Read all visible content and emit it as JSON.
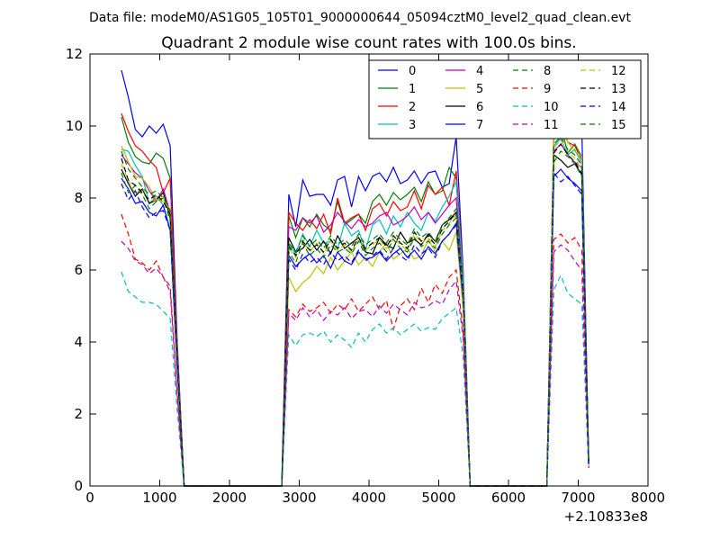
{
  "chart_data": {
    "type": "line",
    "suptitle": "Data file: modeM0/AS1G05_105T01_9000000644_05094cztM0_level2_quad_clean.evt",
    "title": "Quadrant 2 module wise count rates with 100.0s bins.",
    "xlabel": "",
    "ylabel": "",
    "x_offset_label": "+2.10833e8",
    "xlim": [
      0,
      8000
    ],
    "ylim": [
      0,
      12
    ],
    "xticks": [
      0,
      1000,
      2000,
      3000,
      4000,
      5000,
      6000,
      7000,
      8000
    ],
    "yticks": [
      0,
      2,
      4,
      6,
      8,
      10,
      12
    ],
    "grid": false,
    "legend_position": "top-right",
    "x": [
      450,
      550,
      650,
      750,
      850,
      950,
      1050,
      1150,
      1250,
      1350,
      2750,
      2850,
      2950,
      3050,
      3150,
      3250,
      3350,
      3450,
      3550,
      3650,
      3750,
      3850,
      3950,
      4050,
      4150,
      4250,
      4350,
      4450,
      4550,
      4650,
      4750,
      4850,
      4950,
      5050,
      5150,
      5250,
      5350,
      5450,
      6550,
      6650,
      6750,
      6850,
      6950,
      7050,
      7150
    ],
    "series": [
      {
        "name": "0",
        "color": "#0000ff",
        "dash": "solid",
        "values": [
          11.55,
          10.8,
          9.9,
          9.7,
          10.0,
          9.8,
          10.05,
          9.45,
          4.0,
          0,
          0,
          8.1,
          7.2,
          8.5,
          8.05,
          8.1,
          8.1,
          7.8,
          8.5,
          8.6,
          7.75,
          8.6,
          8.2,
          8.6,
          8.7,
          8.45,
          8.85,
          8.4,
          8.5,
          8.75,
          8.4,
          8.7,
          8.75,
          8.3,
          8.4,
          9.7,
          6.0,
          0,
          0,
          9.9,
          10.1,
          9.75,
          10.1,
          10.05,
          0.6
        ]
      },
      {
        "name": "1",
        "color": "#008000",
        "dash": "solid",
        "values": [
          10.25,
          9.55,
          9.15,
          9.0,
          8.95,
          9.25,
          9.1,
          8.55,
          3.8,
          0,
          0,
          7.5,
          6.9,
          7.45,
          7.2,
          7.55,
          7.25,
          7.1,
          7.9,
          7.25,
          7.4,
          7.55,
          7.3,
          7.9,
          8.1,
          7.8,
          8.15,
          7.95,
          8.1,
          8.3,
          7.9,
          8.45,
          8.1,
          8.2,
          8.85,
          8.55,
          5.7,
          0,
          0,
          9.8,
          10.0,
          9.25,
          9.5,
          9.15,
          0.7
        ]
      },
      {
        "name": "2",
        "color": "#ff0000",
        "dash": "solid",
        "values": [
          10.35,
          9.85,
          9.45,
          9.3,
          9.05,
          8.85,
          8.15,
          8.55,
          3.8,
          0,
          0,
          7.6,
          7.3,
          7.1,
          7.4,
          7.15,
          7.55,
          7.0,
          8.0,
          7.3,
          7.45,
          7.55,
          7.1,
          7.7,
          7.85,
          7.5,
          7.9,
          7.65,
          7.75,
          8.2,
          7.7,
          8.35,
          8.1,
          8.3,
          7.8,
          8.75,
          5.9,
          0,
          0,
          9.95,
          10.05,
          9.55,
          9.45,
          9.05,
          0.7
        ]
      },
      {
        "name": "3",
        "color": "#00bfbf",
        "dash": "solid",
        "values": [
          9.35,
          9.3,
          8.9,
          8.6,
          7.85,
          8.05,
          7.8,
          7.1,
          3.4,
          0,
          0,
          6.7,
          6.45,
          7.0,
          6.65,
          7.1,
          6.75,
          6.8,
          6.6,
          7.3,
          6.95,
          7.1,
          6.55,
          7.25,
          7.4,
          7.0,
          7.5,
          7.2,
          7.6,
          7.3,
          7.1,
          7.6,
          7.35,
          7.75,
          8.05,
          8.45,
          5.8,
          0,
          0,
          9.45,
          9.65,
          9.2,
          9.35,
          8.95,
          0.6
        ]
      },
      {
        "name": "4",
        "color": "#bf00bf",
        "dash": "solid",
        "values": [
          9.2,
          8.95,
          8.7,
          8.55,
          8.2,
          7.9,
          8.25,
          7.6,
          3.7,
          0,
          0,
          7.2,
          7.1,
          7.45,
          7.3,
          7.5,
          7.05,
          7.25,
          7.6,
          7.35,
          7.15,
          7.4,
          7.2,
          7.3,
          7.5,
          7.6,
          7.25,
          7.35,
          7.5,
          7.75,
          7.4,
          7.6,
          7.3,
          7.55,
          7.8,
          8.0,
          5.5,
          0,
          0,
          9.3,
          9.5,
          9.2,
          9.0,
          8.85,
          0.7
        ]
      },
      {
        "name": "5",
        "color": "#bfbf00",
        "dash": "solid",
        "values": [
          9.45,
          9.0,
          8.6,
          8.55,
          8.3,
          7.95,
          7.9,
          7.7,
          3.5,
          0,
          0,
          5.8,
          5.4,
          5.65,
          5.8,
          6.1,
          5.9,
          6.35,
          6.0,
          6.25,
          6.5,
          6.15,
          6.35,
          6.1,
          6.5,
          6.75,
          6.3,
          6.45,
          6.6,
          6.3,
          6.4,
          6.85,
          6.5,
          6.8,
          6.55,
          7.05,
          4.9,
          0,
          0,
          9.75,
          9.9,
          9.55,
          9.3,
          9.15,
          0.6
        ]
      },
      {
        "name": "6",
        "color": "#000000",
        "dash": "solid",
        "values": [
          8.8,
          8.4,
          8.05,
          8.25,
          7.85,
          7.95,
          8.15,
          7.45,
          3.5,
          0,
          0,
          6.9,
          6.5,
          6.6,
          6.85,
          6.55,
          6.8,
          6.45,
          6.95,
          6.6,
          6.75,
          6.9,
          6.5,
          6.45,
          6.9,
          6.7,
          6.6,
          7.05,
          6.75,
          6.85,
          6.7,
          7.0,
          6.8,
          7.25,
          7.4,
          7.6,
          5.4,
          0,
          0,
          9.2,
          9.05,
          8.85,
          8.95,
          8.65,
          0.7
        ]
      },
      {
        "name": "7",
        "color": "#0000ff",
        "dash": "solid",
        "values": [
          8.55,
          8.25,
          7.85,
          7.9,
          7.6,
          7.5,
          7.8,
          7.1,
          3.3,
          0,
          0,
          6.4,
          6.1,
          6.3,
          6.45,
          6.2,
          6.4,
          6.05,
          6.5,
          6.25,
          6.15,
          6.5,
          6.3,
          6.35,
          6.5,
          6.25,
          6.45,
          6.6,
          6.35,
          6.55,
          6.3,
          6.65,
          6.45,
          6.8,
          7.0,
          7.3,
          5.2,
          0,
          0,
          8.6,
          8.8,
          8.55,
          8.4,
          8.2,
          0.6
        ]
      },
      {
        "name": "8",
        "color": "#008000",
        "dash": "dashed",
        "values": [
          8.7,
          8.15,
          8.35,
          8.1,
          7.7,
          7.9,
          8.0,
          7.35,
          3.4,
          0,
          0,
          6.5,
          6.2,
          6.75,
          6.4,
          6.6,
          6.35,
          6.7,
          6.5,
          6.6,
          6.45,
          6.8,
          6.4,
          6.6,
          6.75,
          6.5,
          6.85,
          6.6,
          6.5,
          6.9,
          6.65,
          6.8,
          6.6,
          7.0,
          7.25,
          7.45,
          5.3,
          0,
          0,
          9.0,
          9.3,
          9.15,
          8.95,
          8.6,
          0.7
        ]
      },
      {
        "name": "9",
        "color": "#ff0000",
        "dash": "dashed",
        "values": [
          7.55,
          7.0,
          6.3,
          6.2,
          6.0,
          6.25,
          5.8,
          5.55,
          2.6,
          0,
          0,
          4.9,
          4.7,
          5.05,
          4.85,
          4.95,
          5.1,
          4.8,
          5.05,
          4.9,
          5.2,
          4.85,
          5.05,
          5.25,
          4.9,
          5.15,
          4.35,
          5.0,
          5.2,
          4.9,
          5.5,
          5.1,
          5.6,
          5.35,
          5.8,
          6.0,
          4.3,
          0,
          0,
          6.85,
          7.0,
          6.75,
          6.9,
          6.55,
          0.5
        ]
      },
      {
        "name": "10",
        "color": "#00bfbf",
        "dash": "dashed",
        "values": [
          5.95,
          5.4,
          5.25,
          5.1,
          5.1,
          5.05,
          4.85,
          4.65,
          2.1,
          0,
          0,
          4.2,
          3.9,
          4.2,
          4.25,
          4.15,
          4.3,
          4.0,
          4.2,
          4.05,
          3.85,
          4.25,
          4.0,
          4.35,
          4.5,
          4.25,
          4.4,
          4.2,
          4.35,
          4.5,
          4.3,
          4.4,
          4.35,
          4.65,
          4.8,
          4.95,
          3.6,
          0,
          0,
          5.45,
          5.85,
          5.35,
          5.2,
          5.05,
          0.5
        ]
      },
      {
        "name": "11",
        "color": "#bf00bf",
        "dash": "dashed",
        "values": [
          6.8,
          6.6,
          6.25,
          6.15,
          5.9,
          6.05,
          5.8,
          5.4,
          2.5,
          0,
          0,
          4.8,
          4.6,
          4.95,
          4.7,
          4.9,
          4.6,
          4.85,
          4.75,
          4.95,
          4.65,
          4.85,
          4.9,
          4.7,
          5.0,
          4.8,
          5.05,
          4.9,
          4.75,
          5.1,
          4.95,
          5.0,
          5.15,
          5.05,
          5.45,
          5.7,
          4.1,
          0,
          0,
          6.5,
          6.7,
          6.55,
          6.25,
          6.0,
          0.5
        ]
      },
      {
        "name": "12",
        "color": "#bfbf00",
        "dash": "dashed",
        "values": [
          8.95,
          8.5,
          8.1,
          8.3,
          7.9,
          7.95,
          8.05,
          7.5,
          3.5,
          0,
          0,
          6.6,
          6.35,
          6.85,
          6.5,
          6.75,
          6.45,
          6.8,
          6.55,
          6.7,
          6.5,
          6.9,
          6.55,
          6.7,
          6.85,
          6.6,
          6.9,
          6.7,
          6.55,
          7.0,
          6.75,
          6.9,
          6.65,
          7.1,
          7.3,
          7.55,
          5.4,
          0,
          0,
          9.4,
          9.6,
          9.3,
          9.1,
          8.8,
          0.7
        ]
      },
      {
        "name": "13",
        "color": "#000000",
        "dash": "dashed",
        "values": [
          9.1,
          8.5,
          8.35,
          8.15,
          7.95,
          8.1,
          7.9,
          7.55,
          3.5,
          0,
          0,
          6.65,
          6.4,
          6.8,
          6.55,
          6.7,
          6.5,
          6.85,
          6.6,
          6.75,
          6.55,
          6.9,
          6.6,
          6.75,
          6.9,
          6.65,
          6.95,
          6.75,
          6.6,
          7.05,
          6.8,
          6.95,
          6.7,
          7.15,
          7.35,
          7.6,
          5.4,
          0,
          0,
          9.25,
          9.5,
          9.2,
          9.0,
          8.7,
          0.7
        ]
      },
      {
        "name": "14",
        "color": "#0000ff",
        "dash": "dashed",
        "values": [
          8.4,
          7.95,
          8.2,
          7.75,
          7.45,
          7.6,
          7.65,
          7.1,
          3.3,
          0,
          0,
          6.3,
          6.0,
          6.45,
          6.2,
          6.35,
          6.15,
          6.5,
          6.25,
          6.4,
          6.2,
          6.55,
          6.25,
          6.4,
          6.55,
          6.3,
          6.6,
          6.4,
          6.25,
          6.7,
          6.45,
          6.6,
          6.35,
          6.8,
          7.0,
          7.25,
          5.2,
          0,
          0,
          8.7,
          8.45,
          8.6,
          8.35,
          8.1,
          0.6
        ]
      },
      {
        "name": "15",
        "color": "#008000",
        "dash": "dashed",
        "values": [
          9.3,
          8.8,
          8.55,
          8.3,
          8.1,
          8.2,
          8.0,
          7.65,
          3.6,
          0,
          0,
          6.75,
          6.5,
          6.95,
          6.65,
          6.85,
          6.6,
          6.95,
          6.7,
          6.85,
          6.65,
          7.0,
          6.7,
          6.85,
          7.0,
          6.75,
          7.05,
          6.85,
          6.7,
          7.15,
          6.9,
          7.05,
          6.8,
          7.25,
          7.45,
          7.7,
          5.5,
          0,
          0,
          9.5,
          9.7,
          9.35,
          9.2,
          8.9,
          0.7
        ]
      }
    ]
  }
}
